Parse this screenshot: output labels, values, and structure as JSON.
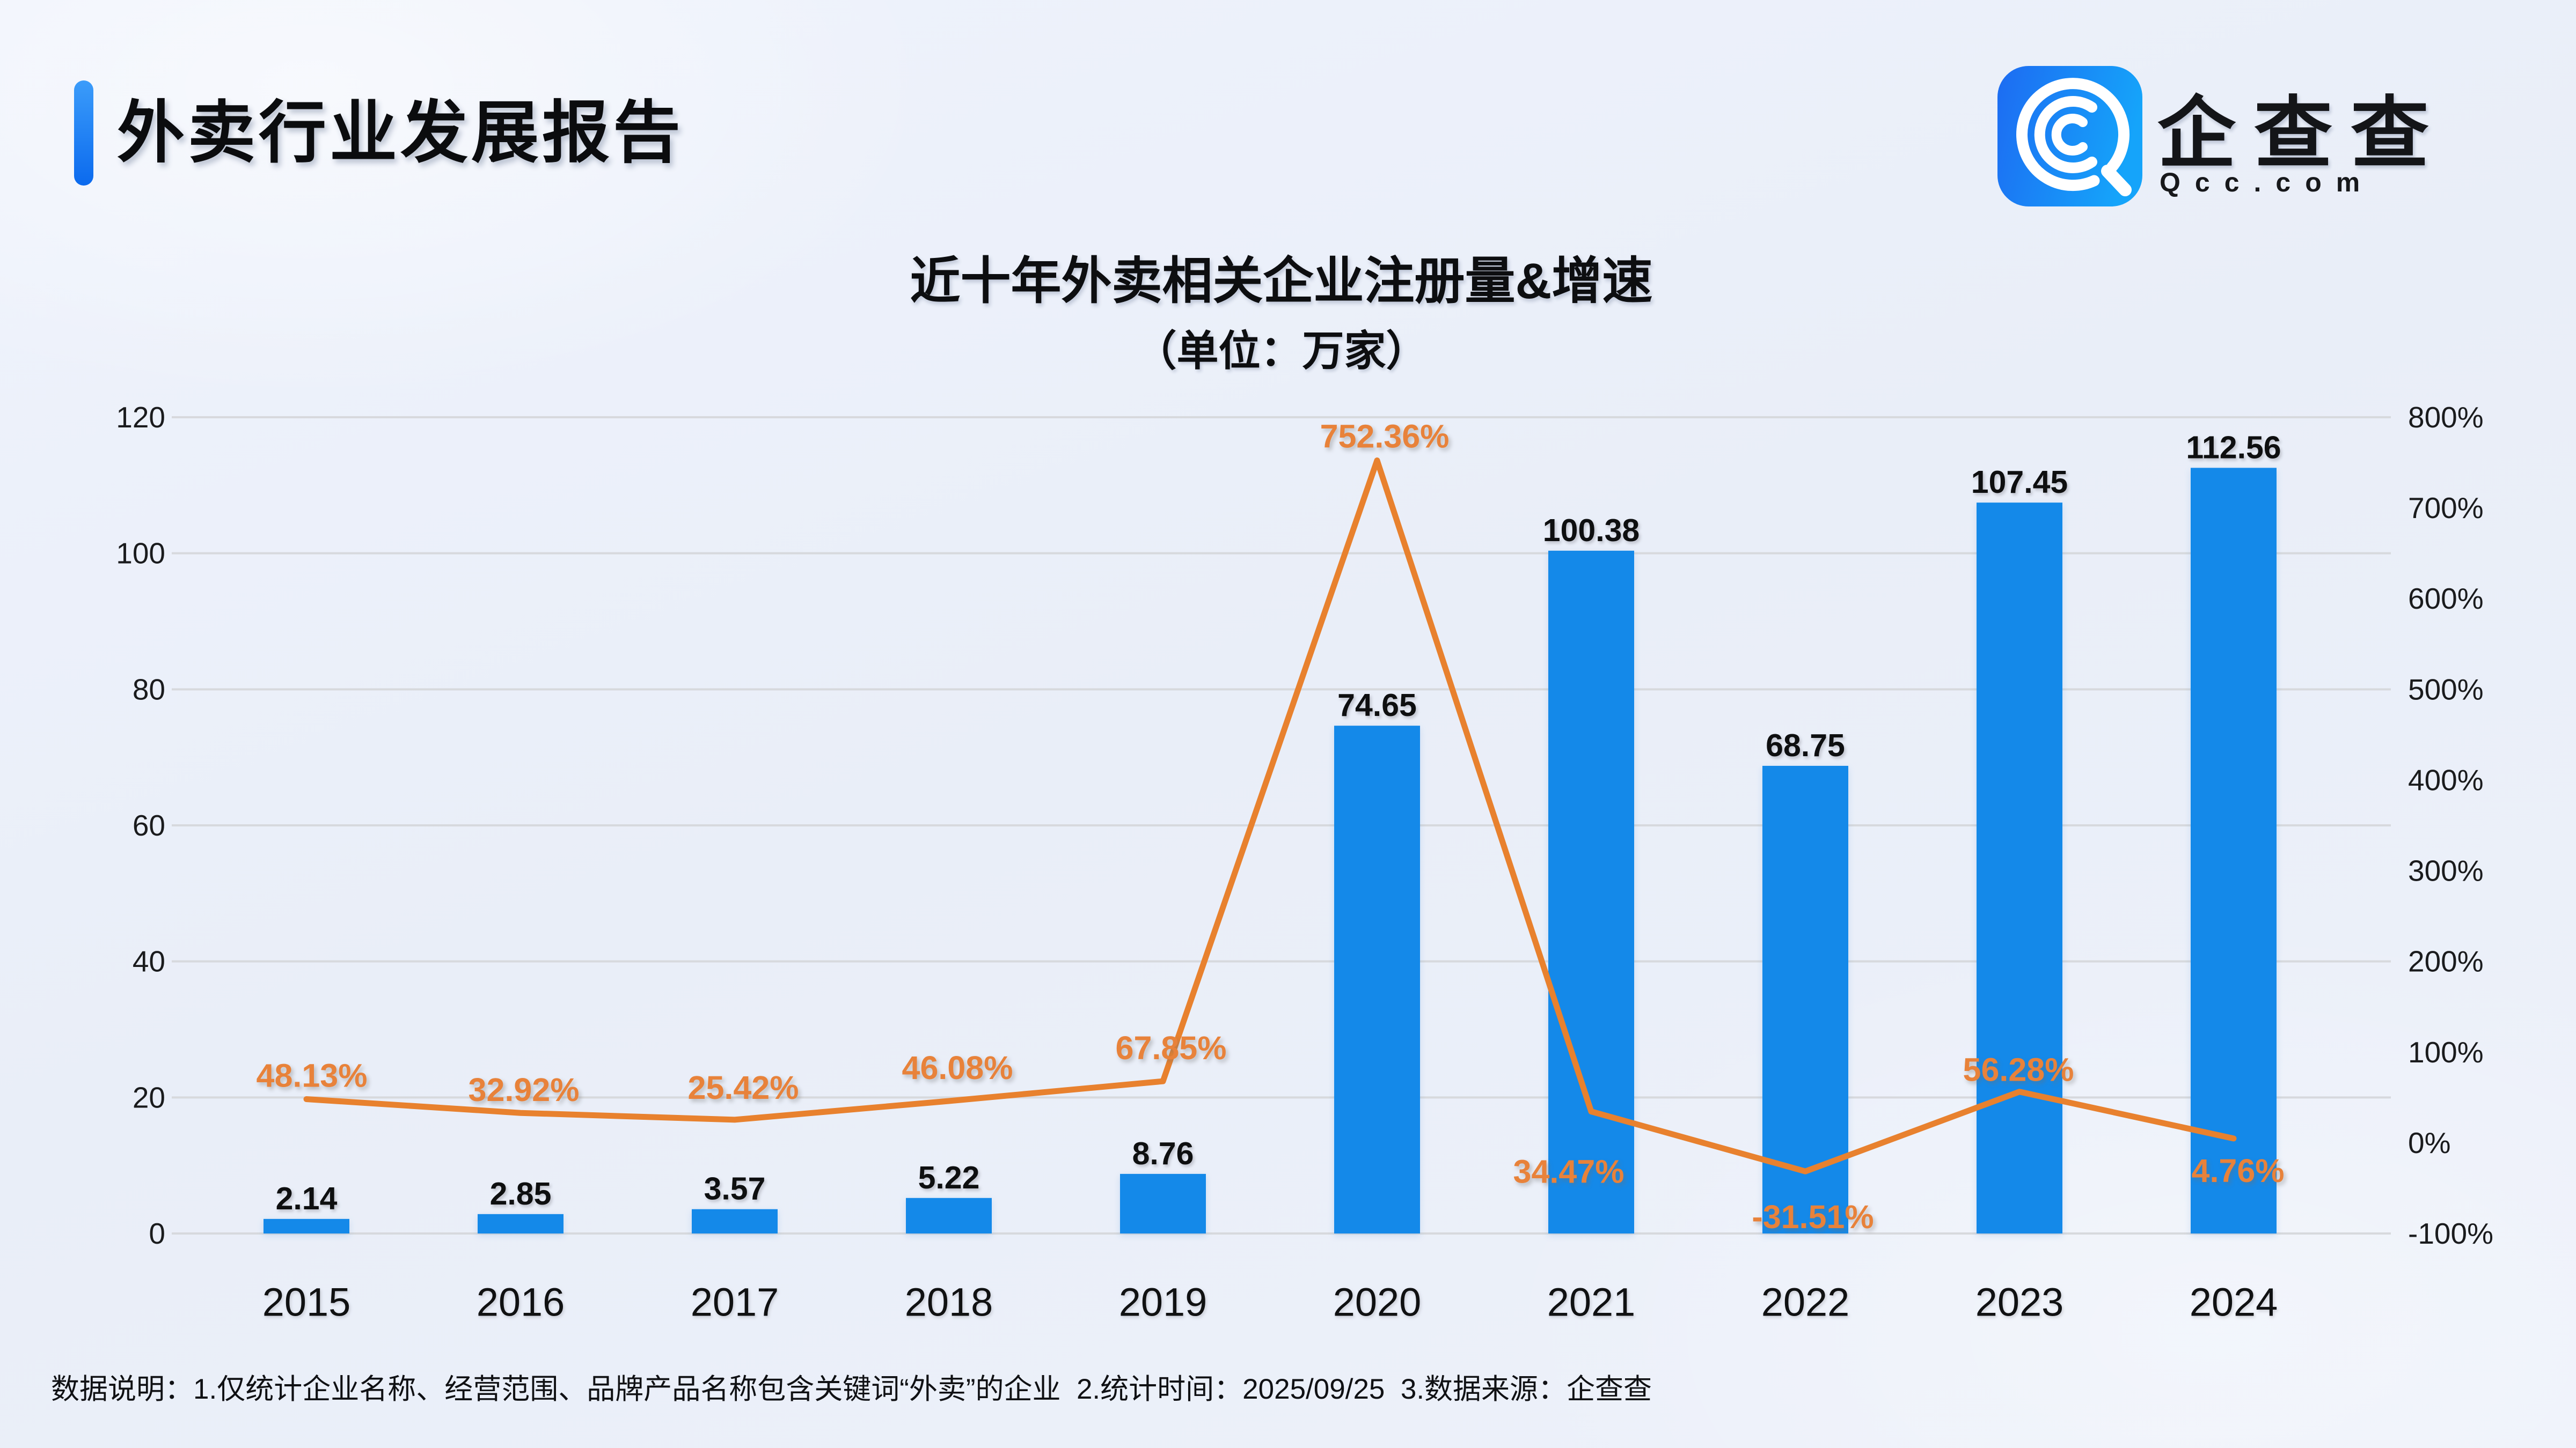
{
  "header": {
    "title": "外卖行业发展报告"
  },
  "logo": {
    "name": "企查查",
    "domain": "Qcc.com",
    "icon": "qcc-spiral-icon"
  },
  "footnote": {
    "text": "数据说明：1.仅统计企业名称、经营范围、品牌产品名称包含关键词“外卖”的企业  2.统计时间：2025/09/25  3.数据来源：企查查"
  },
  "colors": {
    "bar": "#1489e9",
    "line": "#e8812e",
    "grid": "#d7d9dd",
    "background": "#edf1fa",
    "accent_start": "#3b9cfa",
    "accent_end": "#0b6aee",
    "logo_blue_start": "#1d6bf2",
    "logo_blue_end": "#15a4fa"
  },
  "chart_data": {
    "type": "bar+line",
    "title": "近十年外卖相关企业注册量&增速",
    "subtitle": "（单位：万家）",
    "categories": [
      "2015",
      "2016",
      "2017",
      "2018",
      "2019",
      "2020",
      "2021",
      "2022",
      "2023",
      "2024"
    ],
    "series": [
      {
        "name": "注册量（万家）",
        "type": "bar",
        "axis": "left",
        "color": "#1489e9",
        "values": [
          2.14,
          2.85,
          3.57,
          5.22,
          8.76,
          74.65,
          100.38,
          68.75,
          107.45,
          112.56
        ],
        "value_labels": [
          "2.14",
          "2.85",
          "3.57",
          "5.22",
          "8.76",
          "74.65",
          "100.38",
          "68.75",
          "107.45",
          "112.56"
        ]
      },
      {
        "name": "增速",
        "type": "line",
        "axis": "right",
        "color": "#e8812e",
        "values": [
          48.13,
          32.92,
          25.42,
          46.08,
          67.85,
          752.36,
          34.47,
          -31.51,
          56.28,
          4.76
        ],
        "value_labels": [
          "48.13%",
          "32.92%",
          "25.42%",
          "46.08%",
          "67.85%",
          "752.36%",
          "34.47%",
          "-31.51%",
          "56.28%",
          "4.76%"
        ]
      }
    ],
    "left_axis": {
      "min": 0,
      "max": 120,
      "ticks": [
        0,
        20,
        40,
        60,
        80,
        100,
        120
      ]
    },
    "right_axis": {
      "min": -100,
      "max": 800,
      "tick_labels": [
        "800%",
        "700%",
        "600%",
        "500%",
        "400%",
        "300%",
        "200%",
        "100%",
        "0%",
        "-100%"
      ]
    },
    "grid": true,
    "legend": false
  }
}
